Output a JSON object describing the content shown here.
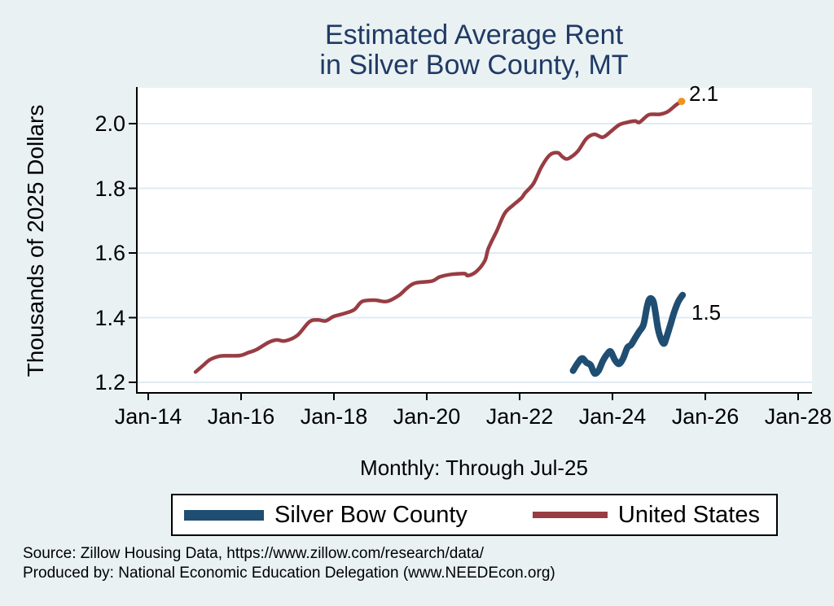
{
  "page": {
    "background": "#e9f1f3"
  },
  "title": {
    "line1": "Estimated Average Rent",
    "line2": "in Silver Bow County, MT",
    "color": "#203a64"
  },
  "subtitle": "Monthly: Through Jul-25",
  "y_axis": {
    "title": "Thousands of 2025 Dollars",
    "ticks": [
      {
        "value": 2.0,
        "label": "2.0"
      },
      {
        "value": 1.8,
        "label": "1.8"
      },
      {
        "value": 1.6,
        "label": "1.6"
      },
      {
        "value": 1.4,
        "label": "1.4"
      },
      {
        "value": 1.2,
        "label": "1.2"
      }
    ]
  },
  "x_axis": {
    "ticks": [
      {
        "value": 2014,
        "label": "Jan-14"
      },
      {
        "value": 2016,
        "label": "Jan-16"
      },
      {
        "value": 2018,
        "label": "Jan-18"
      },
      {
        "value": 2020,
        "label": "Jan-20"
      },
      {
        "value": 2022,
        "label": "Jan-22"
      },
      {
        "value": 2024,
        "label": "Jan-24"
      },
      {
        "value": 2026,
        "label": "Jan-26"
      },
      {
        "value": 2028,
        "label": "Jan-28"
      }
    ]
  },
  "legend": {
    "items": [
      {
        "label": "Silver Bow County",
        "color": "#1f4e72"
      },
      {
        "label": "United States",
        "color": "#983d43"
      }
    ]
  },
  "source": {
    "line1": "Source: Zillow Housing Data, https://www.zillow.com/research/data/",
    "line2": "Produced by: National Economic Education Delegation (www.NEEDEcon.org)"
  },
  "chart_data": {
    "type": "line",
    "title": "Estimated Average Rent in Silver Bow County, MT",
    "subtitle": "Monthly: Through Jul-25",
    "xlabel": "",
    "ylabel": "Thousands of 2025 Dollars",
    "x_unit": "decimal_year",
    "xlim": [
      2013.74,
      2028.3
    ],
    "ylim": [
      1.165,
      2.11
    ],
    "grid": "horizontal",
    "legend_position": "bottom",
    "colors": {
      "background": "#e9f1f3",
      "plot_background": "#ffffff",
      "gridline": "#dfebf3",
      "axis": "#000000",
      "endpoint_dot": "#f0921e"
    },
    "annotations": {
      "us_end_label": "2.1",
      "county_end_label": "1.5"
    },
    "series": [
      {
        "name": "United States",
        "color": "#983d43",
        "stroke_width": 4.5,
        "end_dot": true,
        "points": [
          [
            2015.02,
            1.232
          ],
          [
            2015.18,
            1.252
          ],
          [
            2015.33,
            1.27
          ],
          [
            2015.54,
            1.281
          ],
          [
            2015.72,
            1.282
          ],
          [
            2015.98,
            1.283
          ],
          [
            2016.16,
            1.292
          ],
          [
            2016.33,
            1.301
          ],
          [
            2016.6,
            1.324
          ],
          [
            2016.77,
            1.331
          ],
          [
            2016.95,
            1.328
          ],
          [
            2017.21,
            1.345
          ],
          [
            2017.47,
            1.387
          ],
          [
            2017.65,
            1.393
          ],
          [
            2017.82,
            1.39
          ],
          [
            2018.0,
            1.404
          ],
          [
            2018.23,
            1.413
          ],
          [
            2018.44,
            1.425
          ],
          [
            2018.61,
            1.45
          ],
          [
            2018.88,
            1.454
          ],
          [
            2019.14,
            1.45
          ],
          [
            2019.4,
            1.469
          ],
          [
            2019.58,
            1.492
          ],
          [
            2019.75,
            1.507
          ],
          [
            2020.11,
            1.513
          ],
          [
            2020.28,
            1.526
          ],
          [
            2020.54,
            1.534
          ],
          [
            2020.81,
            1.536
          ],
          [
            2020.89,
            1.53
          ],
          [
            2021.07,
            1.543
          ],
          [
            2021.25,
            1.576
          ],
          [
            2021.33,
            1.615
          ],
          [
            2021.51,
            1.669
          ],
          [
            2021.68,
            1.723
          ],
          [
            2021.86,
            1.748
          ],
          [
            2022.04,
            1.77
          ],
          [
            2022.12,
            1.786
          ],
          [
            2022.3,
            1.815
          ],
          [
            2022.47,
            1.866
          ],
          [
            2022.65,
            1.903
          ],
          [
            2022.82,
            1.91
          ],
          [
            2022.91,
            1.899
          ],
          [
            2023.0,
            1.891
          ],
          [
            2023.09,
            1.895
          ],
          [
            2023.26,
            1.916
          ],
          [
            2023.44,
            1.954
          ],
          [
            2023.61,
            1.967
          ],
          [
            2023.79,
            1.958
          ],
          [
            2023.96,
            1.975
          ],
          [
            2024.14,
            1.996
          ],
          [
            2024.32,
            2.004
          ],
          [
            2024.49,
            2.008
          ],
          [
            2024.58,
            2.004
          ],
          [
            2024.75,
            2.025
          ],
          [
            2024.84,
            2.029
          ],
          [
            2025.02,
            2.029
          ],
          [
            2025.19,
            2.037
          ],
          [
            2025.37,
            2.058
          ],
          [
            2025.49,
            2.069
          ]
        ]
      },
      {
        "name": "Silver Bow County",
        "color": "#1f4e72",
        "stroke_width": 8,
        "end_dot": false,
        "points": [
          [
            2023.15,
            1.236
          ],
          [
            2023.26,
            1.261
          ],
          [
            2023.35,
            1.274
          ],
          [
            2023.44,
            1.261
          ],
          [
            2023.53,
            1.253
          ],
          [
            2023.61,
            1.228
          ],
          [
            2023.7,
            1.236
          ],
          [
            2023.79,
            1.265
          ],
          [
            2023.88,
            1.286
          ],
          [
            2023.96,
            1.295
          ],
          [
            2024.05,
            1.27
          ],
          [
            2024.14,
            1.257
          ],
          [
            2024.23,
            1.274
          ],
          [
            2024.32,
            1.307
          ],
          [
            2024.4,
            1.316
          ],
          [
            2024.49,
            1.337
          ],
          [
            2024.58,
            1.358
          ],
          [
            2024.67,
            1.379
          ],
          [
            2024.75,
            1.438
          ],
          [
            2024.81,
            1.459
          ],
          [
            2024.88,
            1.45
          ],
          [
            2024.93,
            1.412
          ],
          [
            2024.98,
            1.366
          ],
          [
            2025.05,
            1.332
          ],
          [
            2025.11,
            1.32
          ],
          [
            2025.16,
            1.337
          ],
          [
            2025.25,
            1.379
          ],
          [
            2025.33,
            1.417
          ],
          [
            2025.42,
            1.45
          ],
          [
            2025.51,
            1.47
          ]
        ]
      }
    ]
  }
}
